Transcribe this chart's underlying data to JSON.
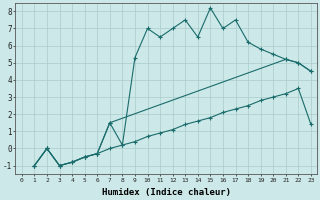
{
  "xlabel": "Humidex (Indice chaleur)",
  "xlim": [
    -0.5,
    23.5
  ],
  "ylim": [
    -1.5,
    8.5
  ],
  "xticks": [
    0,
    1,
    2,
    3,
    4,
    5,
    6,
    7,
    8,
    9,
    10,
    11,
    12,
    13,
    14,
    15,
    16,
    17,
    18,
    19,
    20,
    21,
    22,
    23
  ],
  "yticks": [
    -1,
    0,
    1,
    2,
    3,
    4,
    5,
    6,
    7,
    8
  ],
  "bg_color": "#cce8e8",
  "grid_color": "#aacccc",
  "line_color": "#1a6b6b",
  "curve1_x": [
    1,
    2,
    3,
    4,
    5,
    6,
    7,
    8,
    9,
    10,
    11,
    12,
    13,
    14,
    15,
    16,
    17,
    18,
    19,
    20,
    21,
    22,
    23
  ],
  "curve1_y": [
    -1,
    0,
    -1,
    -0.8,
    -0.5,
    -0.3,
    1.5,
    0.2,
    5.3,
    7.0,
    6.5,
    7.0,
    7.5,
    6.5,
    8.2,
    7.0,
    7.5,
    6.2,
    5.8,
    5.5,
    5.2,
    5.0,
    4.5
  ],
  "curve2_x": [
    1,
    2,
    3,
    4,
    5,
    6,
    7,
    21,
    22,
    23
  ],
  "curve2_y": [
    -1,
    0,
    -1,
    -0.8,
    -0.5,
    -0.3,
    1.5,
    5.2,
    5.0,
    4.5
  ],
  "curve3_x": [
    1,
    2,
    3,
    4,
    5,
    6,
    7,
    8,
    9,
    10,
    11,
    12,
    13,
    14,
    15,
    16,
    17,
    18,
    19,
    20,
    21,
    22,
    23
  ],
  "curve3_y": [
    -1,
    0,
    -1,
    -0.8,
    -0.5,
    -0.3,
    0.0,
    0.2,
    0.4,
    0.7,
    0.9,
    1.1,
    1.4,
    1.6,
    1.8,
    2.1,
    2.3,
    2.5,
    2.8,
    3.0,
    3.2,
    3.5,
    1.4
  ]
}
